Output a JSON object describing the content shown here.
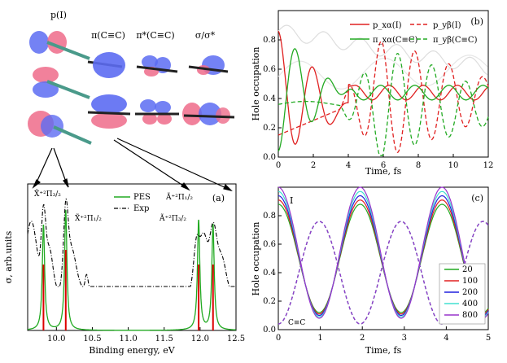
{
  "orbitals": {
    "col_labels": [
      "p(I)",
      "π(C≡C)",
      "π*(C≡C)",
      "σ/σ*"
    ]
  },
  "panel_a": {
    "tag": "(a)",
    "xlabel": "Binding energy, eV",
    "ylabel": "σ, arb.units",
    "xticks": [
      "10.0",
      "10.5",
      "11.0",
      "11.5",
      "12.0",
      "12.5"
    ],
    "legend": [
      "PES",
      "Exp"
    ],
    "annotations": [
      "X̃⁺²Π₃/₂",
      "X̃⁺²Π₁/₂",
      "Ã⁺²Π₁/₂",
      "Ã⁺²Π₃/₂"
    ]
  },
  "panel_b": {
    "tag": "(b)",
    "xlabel": "Time, fs",
    "ylabel": "Hole occupation",
    "xticks": [
      "0",
      "2",
      "4",
      "6",
      "8",
      "10",
      "12"
    ],
    "yticks": [
      "0.0",
      "0.2",
      "0.4",
      "0.6",
      "0.8"
    ],
    "legend": [
      "p_xα(I)",
      "p_yβ(I)",
      "π_xα(C≡C)",
      "π_yβ(C≡C)"
    ]
  },
  "panel_c": {
    "tag": "(c)",
    "xlabel": "Time, fs",
    "ylabel": "Hole occupation",
    "xticks": [
      "0",
      "1",
      "2",
      "3",
      "4",
      "5"
    ],
    "yticks": [
      "0.0",
      "0.2",
      "0.4",
      "0.6",
      "0.8"
    ],
    "label_top": "I",
    "label_bottom": "C≡C",
    "legend": [
      "20",
      "100",
      "200",
      "400",
      "800"
    ]
  },
  "chart_data": [
    {
      "type": "line",
      "id": "a",
      "title": "",
      "xlabel": "Binding energy, eV",
      "ylabel": "σ, arb.units",
      "xlim": [
        9.6,
        12.5
      ],
      "series": [
        {
          "name": "PES",
          "peaks_eV": [
            9.82,
            10.13,
            11.98,
            12.18
          ],
          "peak_heights": [
            0.72,
            0.82,
            0.75,
            0.72
          ],
          "color": "#22aa22"
        },
        {
          "name": "Exp",
          "style": "dash-dot",
          "color": "#000000"
        }
      ],
      "stick_positions_eV": [
        9.82,
        10.13,
        11.98,
        12.18
      ],
      "stick_color": "#dd0000"
    },
    {
      "type": "line",
      "id": "b",
      "xlabel": "Time, fs",
      "ylabel": "Hole occupation",
      "xlim": [
        0,
        12
      ],
      "ylim": [
        0,
        1.0
      ],
      "series": [
        {
          "name": "p_xα(I)",
          "style": "solid",
          "color": "#e02020"
        },
        {
          "name": "p_yβ(I)",
          "style": "dashed",
          "color": "#e02020"
        },
        {
          "name": "π_xα(C≡C)",
          "style": "solid",
          "color": "#22aa22"
        },
        {
          "name": "π_yβ(C≡C)",
          "style": "dashed",
          "color": "#22aa22"
        }
      ]
    },
    {
      "type": "line",
      "id": "c",
      "xlabel": "Time, fs",
      "ylabel": "Hole occupation",
      "xlim": [
        0,
        5
      ],
      "ylim": [
        0,
        1.0
      ],
      "series": [
        {
          "name": "20",
          "color": "#22aa22"
        },
        {
          "name": "100",
          "color": "#e02020"
        },
        {
          "name": "200",
          "color": "#2020dd"
        },
        {
          "name": "400",
          "color": "#40e0d0"
        },
        {
          "name": "800",
          "color": "#9933cc"
        }
      ],
      "period_fs": 1.95
    }
  ]
}
